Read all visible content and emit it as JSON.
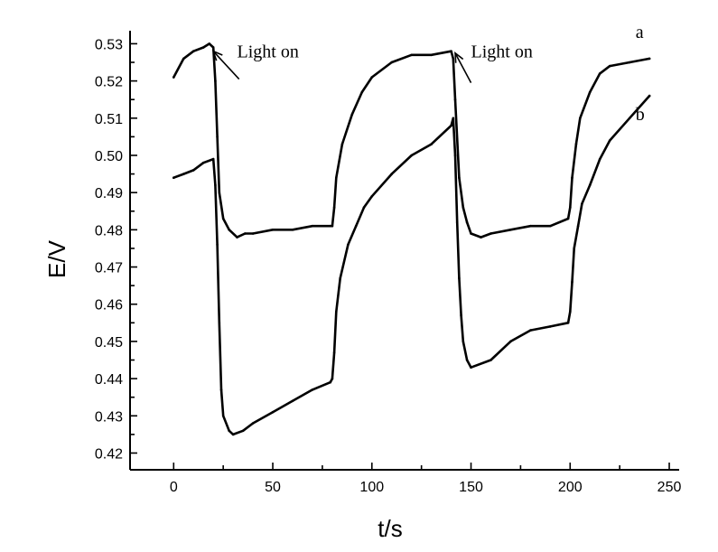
{
  "chart_data": {
    "type": "line",
    "xlabel": "t/s",
    "ylabel": "E/V",
    "xlim": [
      -22,
      255
    ],
    "ylim": [
      0.4155,
      0.5335
    ],
    "xticks": [
      0,
      50,
      100,
      150,
      200,
      250
    ],
    "xtick_labels": [
      "0",
      "50",
      "100",
      "150",
      "200",
      "250"
    ],
    "yticks": [
      0.42,
      0.43,
      0.44,
      0.45,
      0.46,
      0.47,
      0.48,
      0.49,
      0.5,
      0.51,
      0.52,
      0.53
    ],
    "ytick_labels": [
      "0.42",
      "0.43",
      "0.44",
      "0.45",
      "0.46",
      "0.47",
      "0.48",
      "0.49",
      "0.50",
      "0.51",
      "0.52",
      "0.53"
    ],
    "grid": false,
    "series": [
      {
        "name": "a",
        "x": [
          0,
          5,
          10,
          15,
          18,
          20,
          21,
          22,
          23,
          25,
          28,
          32,
          36,
          40,
          50,
          60,
          70,
          79,
          80,
          81,
          82,
          85,
          90,
          95,
          100,
          110,
          120,
          130,
          140,
          141,
          142,
          144,
          146,
          148,
          150,
          155,
          160,
          170,
          180,
          190,
          199,
          200,
          201,
          203,
          205,
          210,
          215,
          220,
          230,
          240
        ],
        "y": [
          0.521,
          0.526,
          0.528,
          0.529,
          0.53,
          0.529,
          0.52,
          0.505,
          0.49,
          0.483,
          0.48,
          0.478,
          0.479,
          0.479,
          0.48,
          0.48,
          0.481,
          0.481,
          0.481,
          0.486,
          0.494,
          0.503,
          0.511,
          0.517,
          0.521,
          0.525,
          0.527,
          0.527,
          0.528,
          0.526,
          0.515,
          0.494,
          0.486,
          0.482,
          0.479,
          0.478,
          0.479,
          0.48,
          0.481,
          0.481,
          0.483,
          0.486,
          0.494,
          0.503,
          0.51,
          0.517,
          0.522,
          0.524,
          0.525,
          0.526
        ]
      },
      {
        "name": "b",
        "x": [
          0,
          5,
          10,
          15,
          20,
          21,
          22,
          23,
          24,
          25,
          28,
          30,
          35,
          40,
          50,
          60,
          70,
          79,
          80,
          81,
          82,
          84,
          88,
          92,
          96,
          100,
          110,
          120,
          130,
          140,
          141,
          142,
          143,
          144,
          145,
          146,
          148,
          150,
          160,
          170,
          180,
          190,
          199,
          200,
          201,
          202,
          204,
          206,
          210,
          215,
          220,
          230,
          240
        ],
        "y": [
          0.494,
          0.495,
          0.496,
          0.498,
          0.499,
          0.492,
          0.476,
          0.455,
          0.437,
          0.43,
          0.426,
          0.425,
          0.426,
          0.428,
          0.431,
          0.434,
          0.437,
          0.439,
          0.44,
          0.447,
          0.458,
          0.467,
          0.476,
          0.481,
          0.486,
          0.489,
          0.495,
          0.5,
          0.503,
          0.508,
          0.51,
          0.5,
          0.482,
          0.467,
          0.457,
          0.45,
          0.445,
          0.443,
          0.445,
          0.45,
          0.453,
          0.454,
          0.455,
          0.458,
          0.466,
          0.475,
          0.481,
          0.487,
          0.492,
          0.499,
          0.504,
          0.51,
          0.516
        ]
      }
    ],
    "annotations": [
      {
        "text": "Light on",
        "x": 32,
        "y": 0.528,
        "arrow_to_x": 20,
        "arrow_to_y": 0.528,
        "arrow_from_x": 33,
        "arrow_from_y": 0.5205
      },
      {
        "text": "Light on",
        "x": 150,
        "y": 0.528,
        "arrow_to_x": 142,
        "arrow_to_y": 0.5275,
        "arrow_from_x": 150,
        "arrow_from_y": 0.5195
      }
    ],
    "series_labels": [
      {
        "text": "a",
        "x": 233,
        "y": 0.5315
      },
      {
        "text": "b",
        "x": 233,
        "y": 0.5095
      }
    ]
  }
}
